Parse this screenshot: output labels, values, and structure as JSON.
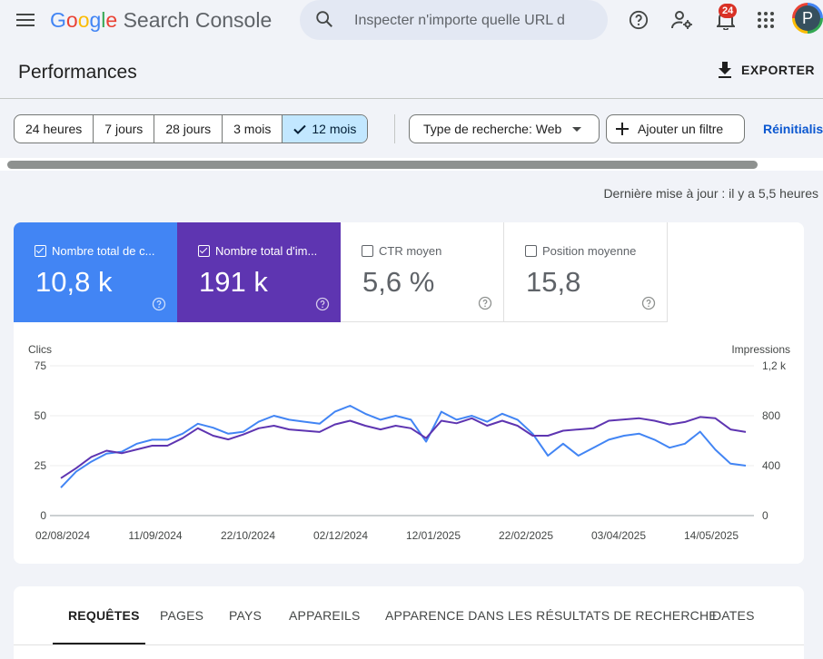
{
  "header": {
    "logo": {
      "letters": [
        "G",
        "o",
        "o",
        "g",
        "l",
        "e"
      ],
      "product": "Search Console"
    },
    "search_placeholder": "Inspecter n'importe quelle URL d",
    "notifications_count": "24",
    "avatar_initial": "P"
  },
  "page": {
    "title": "Performances",
    "export_label": "EXPORTER",
    "last_update": "Dernière mise à jour : il y a 5,5 heures"
  },
  "filters": {
    "date_ranges": [
      "24 heures",
      "7 jours",
      "28 jours",
      "3 mois",
      "12 mois"
    ],
    "selected_range": "12 mois",
    "search_type": "Type de recherche: Web",
    "add_filter": "Ajouter un filtre",
    "reset": "Réinitialiser"
  },
  "metrics": [
    {
      "label": "Nombre total de c...",
      "value": "10,8 k",
      "checked": true,
      "color": "#4285f4"
    },
    {
      "label": "Nombre total d'im...",
      "value": "191 k",
      "checked": true,
      "color": "#5e35b1"
    },
    {
      "label": "CTR moyen",
      "value": "5,6 %",
      "checked": false
    },
    {
      "label": "Position moyenne",
      "value": "15,8",
      "checked": false
    }
  ],
  "chart_data": {
    "type": "line",
    "left_axis_label": "Clics",
    "right_axis_label": "Impressions",
    "left_ticks": [
      "0",
      "25",
      "50",
      "75"
    ],
    "right_ticks": [
      "0",
      "400",
      "800",
      "1,2 k"
    ],
    "ylim_left": [
      0,
      75
    ],
    "ylim_right": [
      0,
      1200
    ],
    "x_tick_labels": [
      "02/08/2024",
      "11/09/2024",
      "22/10/2024",
      "02/12/2024",
      "12/01/2025",
      "22/02/2025",
      "03/04/2025",
      "14/05/2025"
    ],
    "x_range": [
      "2024-08-02",
      "2025-06-07"
    ],
    "grid": true,
    "series": [
      {
        "axis": "left",
        "color": "#4285f4",
        "sampling": "weekly",
        "values": [
          14,
          22,
          27,
          31,
          32,
          36,
          38,
          38,
          41,
          46,
          44,
          41,
          42,
          47,
          50,
          48,
          47,
          46,
          52,
          55,
          51,
          48,
          50,
          48,
          37,
          52,
          48,
          50,
          47,
          51,
          48,
          41,
          30,
          36,
          30,
          34,
          38,
          40,
          41,
          38,
          34,
          36,
          42,
          33,
          26,
          25
        ]
      },
      {
        "axis": "right",
        "color": "#5e35b1",
        "sampling": "weekly",
        "values": [
          300,
          380,
          470,
          520,
          500,
          530,
          560,
          560,
          620,
          700,
          640,
          610,
          650,
          700,
          720,
          690,
          680,
          670,
          730,
          760,
          720,
          690,
          720,
          700,
          620,
          760,
          740,
          780,
          720,
          760,
          720,
          640,
          640,
          680,
          690,
          700,
          760,
          770,
          780,
          760,
          730,
          750,
          790,
          780,
          690,
          670
        ]
      }
    ]
  },
  "tabs": [
    "REQUÊTES",
    "PAGES",
    "PAYS",
    "APPAREILS",
    "APPARENCE DANS LES RÉSULTATS DE RECHERCHE",
    "DATES"
  ],
  "active_tab": "REQUÊTES"
}
